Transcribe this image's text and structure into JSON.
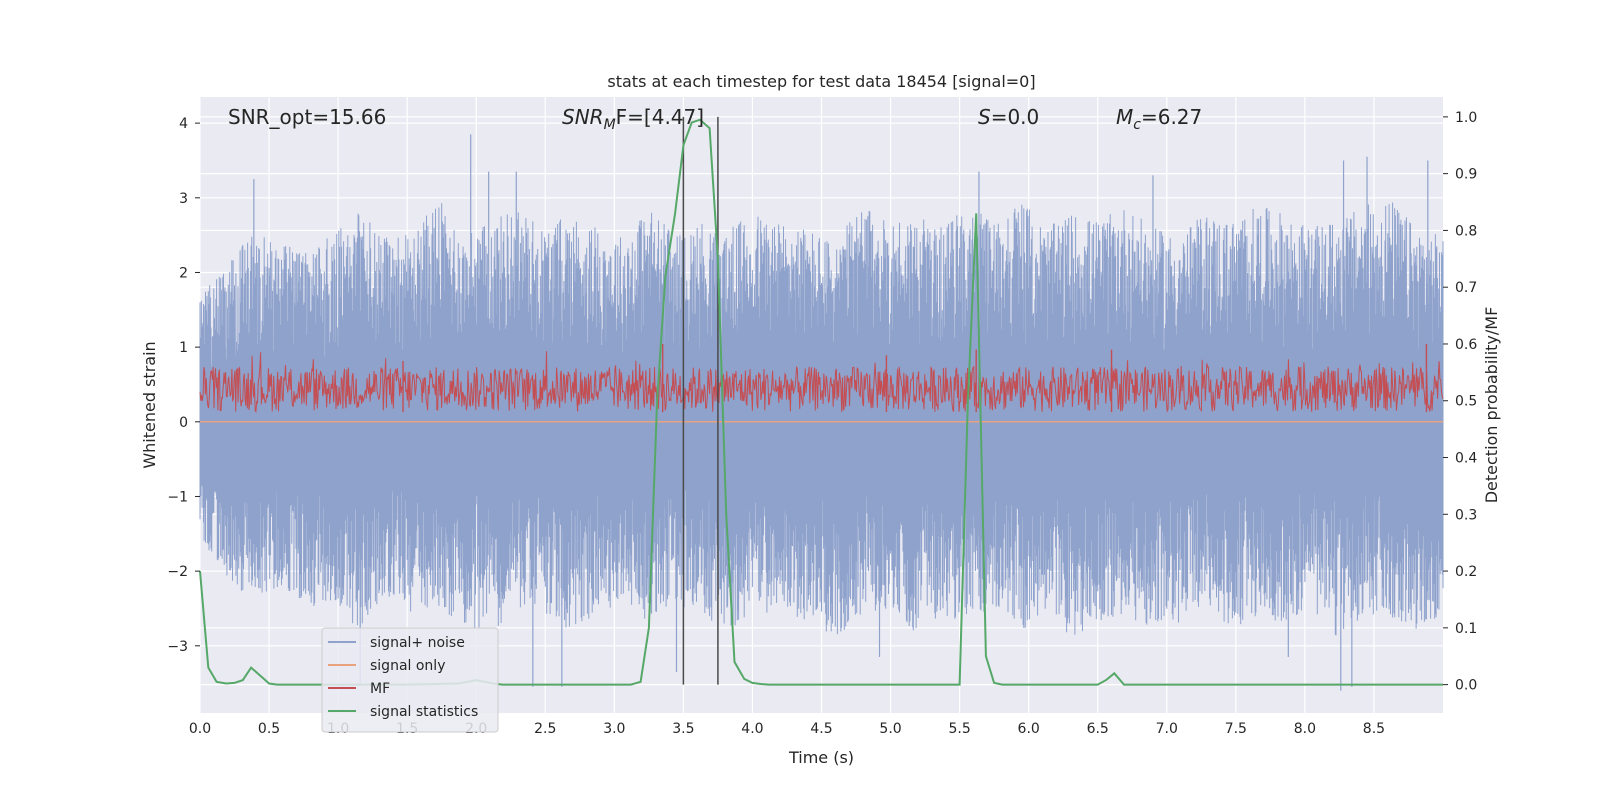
{
  "chart_data": {
    "type": "line",
    "title": "stats at each timestep for test data 18454 [signal=0]",
    "xlabel": "Time (s)",
    "ylabel_left": "Whitened strain",
    "ylabel_right": "Detection probability/MF",
    "xlim": [
      0.0,
      9.0
    ],
    "ylim_left": [
      -3.9,
      4.35
    ],
    "ylim_right": [
      -0.05,
      1.035
    ],
    "x_ticks": [
      "0.0",
      "0.5",
      "1.0",
      "1.5",
      "2.0",
      "2.5",
      "3.0",
      "3.5",
      "4.0",
      "4.5",
      "5.0",
      "5.5",
      "6.0",
      "6.5",
      "7.0",
      "7.5",
      "8.0",
      "8.5"
    ],
    "y_ticks_left": [
      "−3",
      "−2",
      "−1",
      "0",
      "1",
      "2",
      "3",
      "4"
    ],
    "y_ticks_right": [
      "0.0",
      "0.1",
      "0.2",
      "0.3",
      "0.4",
      "0.5",
      "0.6",
      "0.7",
      "0.8",
      "0.9",
      "1.0"
    ],
    "grid": true,
    "legend_position": "lower-left",
    "annotations": {
      "snr_opt": "SNR_opt=15.66",
      "snr_mf_main": "SNR",
      "snr_mf_sub": "M",
      "snr_mf_rest": "F=[4.47]",
      "s_italic": "S",
      "s_rest": "=0.0",
      "mc_italic": "M",
      "mc_sub": "c",
      "mc_rest": "=6.27"
    },
    "vertical_lines_x": [
      3.5,
      3.75
    ],
    "series": [
      {
        "name": "signal+ noise",
        "axis": "left",
        "color": "#8ea2cc",
        "envelope_upper": [
          1.7,
          2.1,
          2.6,
          2.4,
          2.3,
          2.5,
          2.8,
          2.6,
          2.5,
          3.0,
          2.5,
          2.7,
          2.9,
          2.6,
          2.8,
          2.6,
          2.5,
          2.9,
          2.5,
          2.7,
          2.6,
          2.8,
          2.7,
          2.6,
          2.4,
          2.9,
          2.7,
          2.8,
          2.6,
          2.9,
          2.7,
          3.0,
          2.6,
          2.8,
          2.7,
          2.9,
          2.6,
          2.5,
          2.8,
          2.7,
          2.9,
          2.8,
          2.6,
          2.7,
          2.9,
          3.0,
          2.6,
          2.5
        ],
        "envelope_lower": [
          -1.6,
          -2.1,
          -2.4,
          -2.2,
          -2.5,
          -2.4,
          -2.8,
          -2.3,
          -2.6,
          -2.5,
          -2.7,
          -2.9,
          -2.5,
          -2.6,
          -2.8,
          -2.6,
          -2.4,
          -2.7,
          -2.5,
          -2.6,
          -2.8,
          -2.6,
          -2.5,
          -2.7,
          -2.9,
          -2.6,
          -2.5,
          -2.8,
          -2.6,
          -2.7,
          -2.5,
          -2.8,
          -2.6,
          -2.9,
          -2.7,
          -2.6,
          -2.8,
          -2.7,
          -2.5,
          -2.8,
          -2.6,
          -2.7,
          -2.5,
          -2.9,
          -2.6,
          -2.7,
          -2.8,
          -2.6
        ],
        "peaks": [
          {
            "x": 0.39,
            "y": 3.25
          },
          {
            "x": 1.96,
            "y": 3.85
          },
          {
            "x": 2.09,
            "y": 3.35
          },
          {
            "x": 2.29,
            "y": 3.35
          },
          {
            "x": 3.5,
            "y": 3.9
          },
          {
            "x": 5.64,
            "y": 3.35
          },
          {
            "x": 6.9,
            "y": 3.3
          },
          {
            "x": 8.28,
            "y": 3.5
          },
          {
            "x": 8.45,
            "y": 3.55
          },
          {
            "x": 8.89,
            "y": 3.5
          },
          {
            "x": 2.41,
            "y": -3.55
          },
          {
            "x": 2.62,
            "y": -3.55
          },
          {
            "x": 1.16,
            "y": -3.5
          },
          {
            "x": 4.92,
            "y": -3.15
          },
          {
            "x": 8.26,
            "y": -3.6
          },
          {
            "x": 8.34,
            "y": -3.55
          },
          {
            "x": 7.88,
            "y": -3.15
          },
          {
            "x": 3.45,
            "y": -3.35
          }
        ]
      },
      {
        "name": "signal only",
        "axis": "left",
        "color": "#e8a27e",
        "x": [
          0.0,
          9.0
        ],
        "y": [
          0.0,
          0.0
        ]
      },
      {
        "name": "MF",
        "axis": "right",
        "color": "#c44e52",
        "band": [
          0.47,
          0.56
        ],
        "range": [
          0.48,
          0.6
        ],
        "spikes": [
          {
            "x": 3.35,
            "y": 0.6
          },
          {
            "x": 5.62,
            "y": 0.59
          },
          {
            "x": 6.6,
            "y": 0.59
          },
          {
            "x": 8.88,
            "y": 0.6
          },
          {
            "x": 4.97,
            "y": 0.58
          },
          {
            "x": 1.47,
            "y": 0.57
          }
        ]
      },
      {
        "name": "signal statistics",
        "axis": "right",
        "color": "#55a868",
        "x": [
          0.0,
          0.06,
          0.12,
          0.19,
          0.25,
          0.31,
          0.37,
          0.44,
          0.5,
          0.56,
          0.62,
          1.5,
          1.87,
          1.94,
          2.0,
          2.06,
          2.12,
          2.19,
          3.12,
          3.19,
          3.25,
          3.31,
          3.37,
          3.44,
          3.5,
          3.56,
          3.62,
          3.69,
          3.75,
          3.81,
          3.87,
          3.94,
          4.0,
          4.06,
          4.12,
          5.5,
          5.56,
          5.62,
          5.69,
          5.75,
          5.81,
          6.5,
          6.56,
          6.62,
          6.69,
          7.0,
          9.0
        ],
        "y": [
          0.2,
          0.03,
          0.005,
          0.002,
          0.003,
          0.008,
          0.03,
          0.015,
          0.002,
          0.0,
          0.0,
          0.0,
          0.002,
          0.005,
          0.008,
          0.005,
          0.002,
          0.0,
          0.0,
          0.005,
          0.1,
          0.5,
          0.72,
          0.83,
          0.95,
          0.99,
          0.995,
          0.98,
          0.75,
          0.3,
          0.04,
          0.01,
          0.003,
          0.001,
          0.0,
          0.0,
          0.5,
          0.83,
          0.05,
          0.003,
          0.0,
          0.0,
          0.008,
          0.02,
          0.0,
          0.0,
          0.0
        ]
      }
    ]
  }
}
